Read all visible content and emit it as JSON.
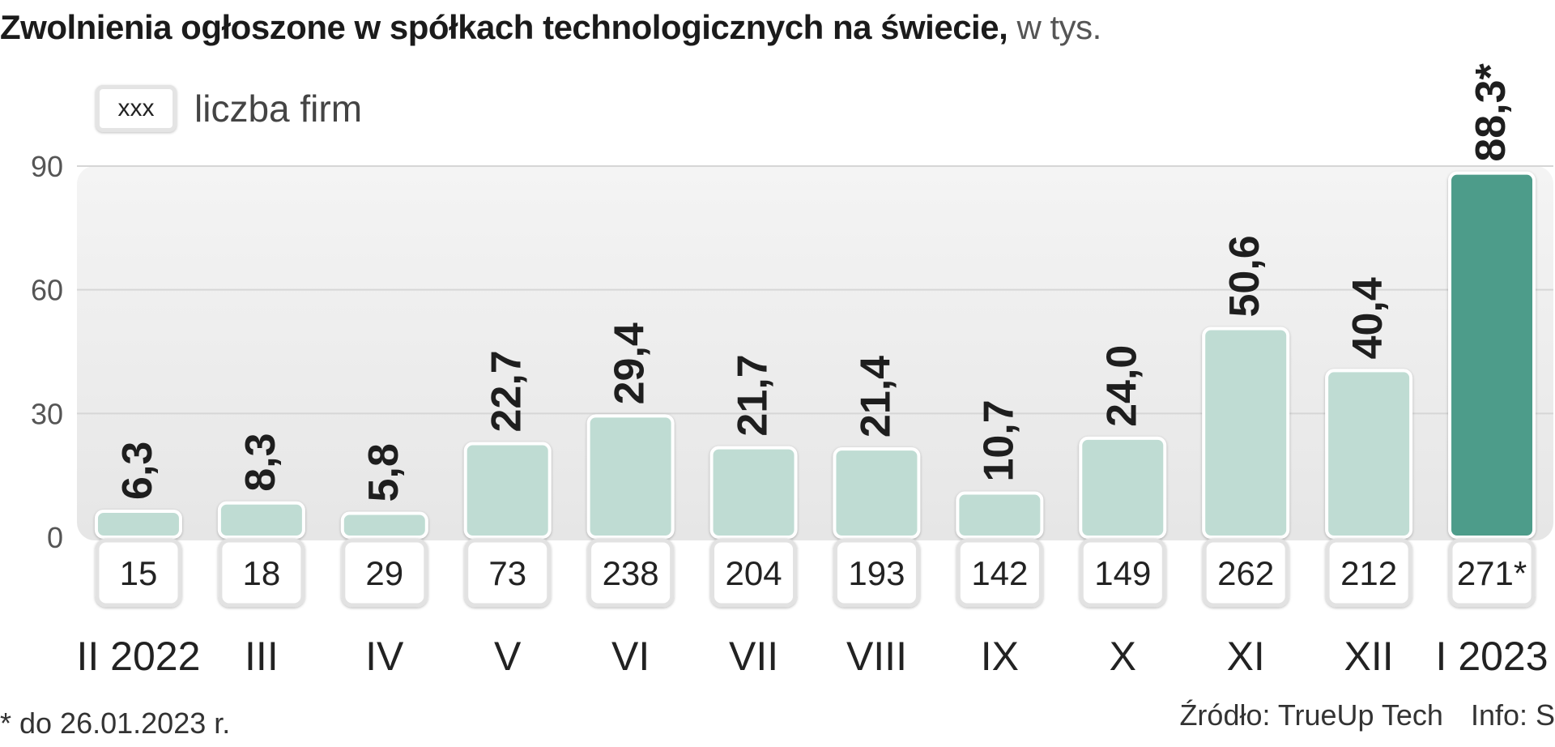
{
  "title": {
    "main": "Zwolnienia ogłoszone w spółkach technologicznych na świecie,",
    "unit": "w tys."
  },
  "legend": {
    "box_text": "xxx",
    "label": "liczba firm"
  },
  "chart_data": {
    "type": "bar",
    "title": "Zwolnienia ogłoszone w spółkach technologicznych na świecie, w tys.",
    "categories": [
      "II 2022",
      "III",
      "IV",
      "V",
      "VI",
      "VII",
      "VIII",
      "IX",
      "X",
      "XI",
      "XII",
      "I 2023"
    ],
    "values": [
      6.3,
      8.3,
      5.8,
      22.7,
      29.4,
      21.7,
      21.4,
      10.7,
      24.0,
      50.6,
      40.4,
      88.3
    ],
    "value_labels": [
      "6,3",
      "8,3",
      "5,8",
      "22,7",
      "29,4",
      "21,7",
      "21,4",
      "10,7",
      "24,0",
      "50,6",
      "40,4",
      "88,3*"
    ],
    "firm_counts": [
      "15",
      "18",
      "29",
      "73",
      "238",
      "204",
      "193",
      "142",
      "149",
      "262",
      "212",
      "271*"
    ],
    "ylim": [
      0,
      90
    ],
    "yticks": [
      0,
      30,
      60,
      90
    ],
    "grid": true,
    "highlight_index": 11,
    "colors": {
      "bar": "#bfdcd3",
      "bar_highlight": "#4e9c8a",
      "grid": "#d6d6d6",
      "panel": "#ededed",
      "value_label": "#1e1e1e"
    }
  },
  "footnote": "* do 26.01.2023 r.",
  "source": {
    "text": "Źródło: TrueUp Tech",
    "info": "Info: S"
  }
}
